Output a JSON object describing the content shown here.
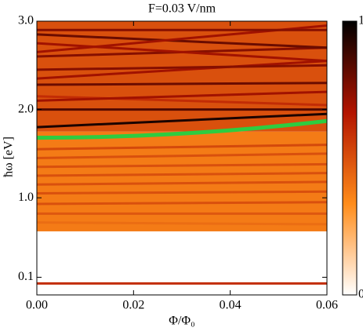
{
  "chart_data": {
    "type": "heatmap",
    "title": "F=0.03 V/nm",
    "xlabel": "Φ/Φ₀",
    "ylabel": "ħω [eV]",
    "xlim": [
      0,
      0.06
    ],
    "ylim": [
      -0.1,
      3.0
    ],
    "xticks": [
      {
        "value": 0,
        "label": "0.00"
      },
      {
        "value": 0.02,
        "label": "0.02"
      },
      {
        "value": 0.04,
        "label": "0.04"
      },
      {
        "value": 0.06,
        "label": "0.06"
      }
    ],
    "yticks": [
      0.1,
      {
        "value": 1,
        "label": "1.0"
      },
      {
        "value": 2,
        "label": "2.0"
      },
      {
        "value": 3,
        "label": "3.0"
      }
    ],
    "colormap": [
      "#ffffff",
      "#ff8c1a",
      "#b31400",
      "#000000"
    ],
    "clim": [
      0,
      1
    ],
    "cticks": [
      0,
      1
    ],
    "regions": [
      {
        "ylim": [
          0.62,
          1.75
        ],
        "value": 0.38
      },
      {
        "ylim": [
          1.75,
          3.0
        ],
        "value": 0.5
      }
    ],
    "lines": [
      {
        "x": [
          0,
          0.06
        ],
        "y": [
          0.03,
          0.03
        ],
        "value": 0.6
      },
      {
        "x": [
          0,
          0.06
        ],
        "y": [
          0.72,
          0.7
        ],
        "value": 0.42
      },
      {
        "x": [
          0,
          0.06
        ],
        "y": [
          0.82,
          0.82
        ],
        "value": 0.48
      },
      {
        "x": [
          0,
          0.06
        ],
        "y": [
          0.93,
          0.95
        ],
        "value": 0.5
      },
      {
        "x": [
          0,
          0.06
        ],
        "y": [
          1.05,
          1.07
        ],
        "value": 0.5
      },
      {
        "x": [
          0,
          0.06
        ],
        "y": [
          1.15,
          1.18
        ],
        "value": 0.5
      },
      {
        "x": [
          0,
          0.06
        ],
        "y": [
          1.25,
          1.28
        ],
        "value": 0.5
      },
      {
        "x": [
          0,
          0.06
        ],
        "y": [
          1.35,
          1.38
        ],
        "value": 0.5
      },
      {
        "x": [
          0,
          0.06
        ],
        "y": [
          1.45,
          1.5
        ],
        "value": 0.5
      },
      {
        "x": [
          0,
          0.06
        ],
        "y": [
          1.55,
          1.6
        ],
        "value": 0.52
      },
      {
        "x": [
          0,
          0.06
        ],
        "y": [
          1.8,
          1.95
        ],
        "value": 0.95
      },
      {
        "x": [
          0,
          0.06
        ],
        "y": [
          2.0,
          2.0
        ],
        "value": 0.85
      },
      {
        "x": [
          0,
          0.06
        ],
        "y": [
          2.15,
          2.05
        ],
        "value": 0.6
      },
      {
        "x": [
          0,
          0.06
        ],
        "y": [
          2.1,
          2.2
        ],
        "value": 0.7
      },
      {
        "x": [
          0,
          0.06
        ],
        "y": [
          2.28,
          2.3
        ],
        "value": 0.8
      },
      {
        "x": [
          0,
          0.06
        ],
        "y": [
          2.35,
          2.55
        ],
        "value": 0.7
      },
      {
        "x": [
          0,
          0.06
        ],
        "y": [
          2.45,
          2.5
        ],
        "value": 0.75
      },
      {
        "x": [
          0,
          0.06
        ],
        "y": [
          2.6,
          2.7
        ],
        "value": 0.75
      },
      {
        "x": [
          0,
          0.06
        ],
        "y": [
          2.75,
          2.55
        ],
        "value": 0.7
      },
      {
        "x": [
          0,
          0.06
        ],
        "y": [
          2.85,
          2.7
        ],
        "value": 0.8
      },
      {
        "x": [
          0,
          0.06
        ],
        "y": [
          2.65,
          2.95
        ],
        "value": 0.7
      },
      {
        "x": [
          0,
          0.06
        ],
        "y": [
          2.9,
          2.9
        ],
        "value": 0.75
      }
    ],
    "highlight": {
      "x": [
        0,
        0.06
      ],
      "y": [
        1.68,
        1.87
      ],
      "color": "#2ecc40"
    }
  }
}
